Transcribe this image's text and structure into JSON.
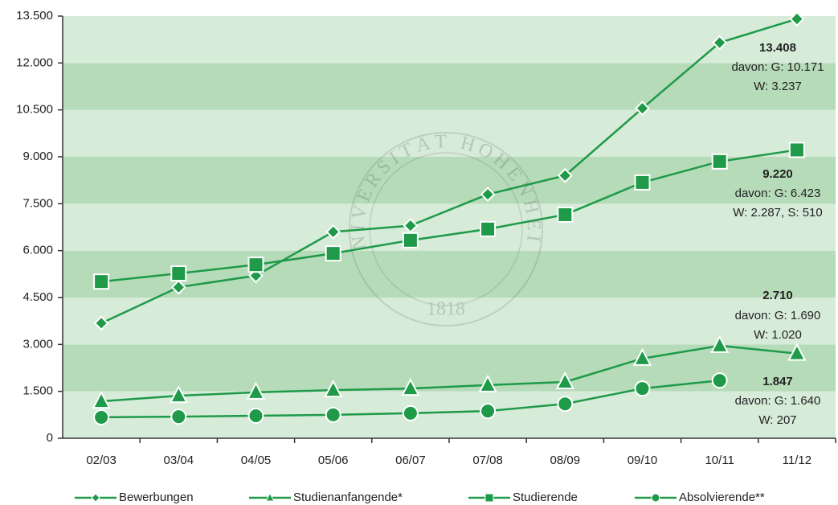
{
  "chart_data": {
    "type": "line",
    "categories": [
      "02/03",
      "03/04",
      "04/05",
      "05/06",
      "06/07",
      "07/08",
      "08/09",
      "09/10",
      "10/11",
      "11/12"
    ],
    "series": [
      {
        "name": "Bewerbungen",
        "color": "#1e9a48",
        "marker": "diamond",
        "values": [
          3680,
          4830,
          5200,
          6600,
          6800,
          7800,
          8400,
          10550,
          12650,
          13408
        ]
      },
      {
        "name": "Studienanfangende*",
        "color": "#1e9a48",
        "marker": "triangle",
        "values": [
          1180,
          1360,
          1470,
          1540,
          1590,
          1700,
          1800,
          2550,
          2960,
          2710
        ]
      },
      {
        "name": "Studierende",
        "color": "#1e9a48",
        "marker": "square",
        "values": [
          5010,
          5270,
          5550,
          5910,
          6330,
          6690,
          7150,
          8180,
          8850,
          9220
        ]
      },
      {
        "name": "Absolvierende**",
        "color": "#1e9a48",
        "marker": "circle",
        "values": [
          670,
          690,
          720,
          750,
          800,
          870,
          1100,
          1590,
          1847,
          null
        ]
      }
    ],
    "ylim": [
      0,
      13500
    ],
    "yticks": [
      0,
      {
        "value": 1500,
        "label": "1.500"
      },
      {
        "value": 3000,
        "label": "3.000"
      },
      {
        "value": 4500,
        "label": "4.500"
      },
      {
        "value": 6000,
        "label": "6.000"
      },
      {
        "value": 7500,
        "label": "7.500"
      },
      {
        "value": 9000,
        "label": "9.000"
      },
      {
        "value": 10500,
        "label": "10.500"
      },
      {
        "value": 12000,
        "label": "12.000"
      },
      {
        "value": 13500,
        "label": "13.500"
      }
    ],
    "band_colors": [
      "#d7ebd9",
      "#b6dbb9"
    ],
    "annotations": [
      [
        "13.408",
        "davon: G: 10.171",
        "W: 3.237"
      ],
      [
        "9.220",
        "davon: G: 6.423",
        "W: 2.287, S: 510"
      ],
      [
        "2.710",
        "davon: G: 1.690",
        "W: 1.020"
      ],
      [
        "1.847",
        "davon: G: 1.640",
        "W: 207"
      ]
    ],
    "watermark": [
      "UNIVERSITÄT HOHENHEIM",
      "1818"
    ]
  }
}
